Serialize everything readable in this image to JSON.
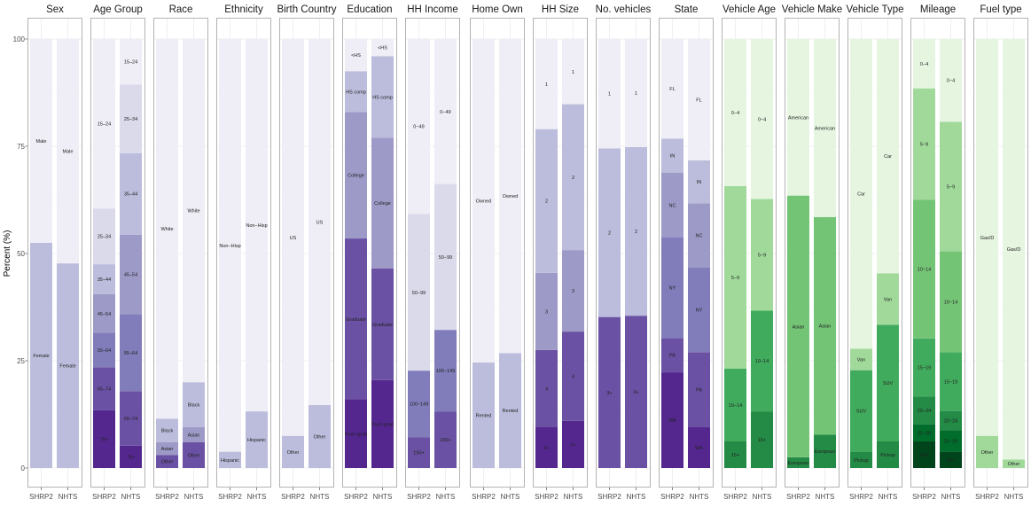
{
  "chart_data": {
    "type": "bar",
    "stacked": true,
    "ylabel": "Percent (%)",
    "xlabel": "",
    "ylim": [
      0,
      100
    ],
    "yticks": [
      0,
      25,
      50,
      75,
      100
    ],
    "categories": [
      "SHRP2",
      "NHTS"
    ],
    "grid": true,
    "palettes": {
      "purple": [
        "#3f007d",
        "#54278f",
        "#6a51a3",
        "#807dba",
        "#9e9ac8",
        "#bcbddc",
        "#dadaeb",
        "#efedf5"
      ],
      "green": [
        "#00441b",
        "#006d2c",
        "#238b45",
        "#41ab5d",
        "#74c476",
        "#a1d99b",
        "#c7e9c0",
        "#e5f5e0"
      ]
    },
    "facets": [
      {
        "title": "Sex",
        "palette": "purple",
        "segments": [
          {
            "label": "Female",
            "values": [
              52.5,
              47.7
            ],
            "color": "#bcbddc"
          },
          {
            "label": "Male",
            "values": [
              47.5,
              52.3
            ],
            "color": "#efedf5"
          }
        ]
      },
      {
        "title": "Age Group",
        "palette": "purple",
        "segments": [
          {
            "label": "75+",
            "values": [
              13.5,
              5.2
            ],
            "color": "#54278f"
          },
          {
            "label": "65–74",
            "values": [
              10.0,
              12.7
            ],
            "color": "#6a51a3"
          },
          {
            "label": "55–64",
            "values": [
              8.0,
              18.0
            ],
            "color": "#807dba"
          },
          {
            "label": "45–54",
            "values": [
              9.0,
              18.5
            ],
            "color": "#9e9ac8"
          },
          {
            "label": "35–44",
            "values": [
              7.0,
              19.0
            ],
            "color": "#bcbddc"
          },
          {
            "label": "25–34",
            "values": [
              13.0,
              16.0
            ],
            "color": "#dadaeb"
          },
          {
            "label": "15–24",
            "values": [
              39.5,
              10.6
            ],
            "color": "#efedf5"
          }
        ]
      },
      {
        "title": "Race",
        "palette": "purple",
        "segments": [
          {
            "label": "Other",
            "values": [
              3.0,
              6.0
            ],
            "color": "#6a51a3"
          },
          {
            "label": "Asian",
            "values": [
              3.0,
              3.5
            ],
            "color": "#9e9ac8"
          },
          {
            "label": "Black",
            "values": [
              5.5,
              10.5
            ],
            "color": "#bcbddc"
          },
          {
            "label": "White",
            "values": [
              88.5,
              80.0
            ],
            "color": "#efedf5"
          }
        ]
      },
      {
        "title": "Ethnicity",
        "palette": "purple",
        "segments": [
          {
            "label": "Hispanic",
            "values": [
              3.8,
              13.2
            ],
            "color": "#bcbddc"
          },
          {
            "label": "Non−Hisp",
            "values": [
              96.2,
              86.8
            ],
            "color": "#efedf5"
          }
        ]
      },
      {
        "title": "Birth Country",
        "palette": "purple",
        "segments": [
          {
            "label": "Other",
            "values": [
              7.5,
              14.7
            ],
            "color": "#bcbddc"
          },
          {
            "label": "US",
            "values": [
              92.5,
              85.3
            ],
            "color": "#efedf5"
          }
        ]
      },
      {
        "title": "Education",
        "palette": "purple",
        "segments": [
          {
            "label": "Post−grad",
            "values": [
              16.0,
              20.5
            ],
            "color": "#54278f"
          },
          {
            "label": "Graduate",
            "values": [
              37.5,
              26.0
            ],
            "color": "#6a51a3"
          },
          {
            "label": "College",
            "values": [
              29.5,
              30.5
            ],
            "color": "#9e9ac8"
          },
          {
            "label": "HS comp",
            "values": [
              9.5,
              19.0
            ],
            "color": "#bcbddc"
          },
          {
            "label": "<HS",
            "values": [
              7.5,
              4.0
            ],
            "color": "#efedf5"
          }
        ]
      },
      {
        "title": "HH Income",
        "palette": "purple",
        "segments": [
          {
            "label": "150+",
            "values": [
              7.2,
              13.2
            ],
            "color": "#6a51a3"
          },
          {
            "label": "100−149",
            "values": [
              15.5,
              19.0
            ],
            "color": "#807dba"
          },
          {
            "label": "50−99",
            "values": [
              36.5,
              34.0
            ],
            "color": "#dadaeb"
          },
          {
            "label": "0−49",
            "values": [
              40.8,
              33.8
            ],
            "color": "#efedf5"
          }
        ]
      },
      {
        "title": "Home Own",
        "palette": "purple",
        "segments": [
          {
            "label": "Rented",
            "values": [
              24.6,
              26.8
            ],
            "color": "#bcbddc"
          },
          {
            "label": "Owned",
            "values": [
              75.4,
              73.2
            ],
            "color": "#efedf5"
          }
        ]
      },
      {
        "title": "HH Size",
        "palette": "purple",
        "segments": [
          {
            "label": "5+",
            "values": [
              9.5,
              11.0
            ],
            "color": "#54278f"
          },
          {
            "label": "4",
            "values": [
              18.0,
              20.8
            ],
            "color": "#6a51a3"
          },
          {
            "label": "3",
            "values": [
              18.0,
              19.0
            ],
            "color": "#9e9ac8"
          },
          {
            "label": "2",
            "values": [
              33.5,
              34.0
            ],
            "color": "#bcbddc"
          },
          {
            "label": "1",
            "values": [
              21.0,
              15.2
            ],
            "color": "#efedf5"
          }
        ]
      },
      {
        "title": "No. vehicles",
        "palette": "purple",
        "segments": [
          {
            "label": "3+",
            "values": [
              35.2,
              35.5
            ],
            "color": "#6a51a3"
          },
          {
            "label": "2",
            "values": [
              39.3,
              39.3
            ],
            "color": "#bcbddc"
          },
          {
            "label": "1",
            "values": [
              25.5,
              25.2
            ],
            "color": "#efedf5"
          }
        ]
      },
      {
        "title": "State",
        "palette": "purple",
        "segments": [
          {
            "label": "WA",
            "values": [
              22.3,
              9.5
            ],
            "color": "#54278f"
          },
          {
            "label": "PA",
            "values": [
              8.0,
              17.5
            ],
            "color": "#6a51a3"
          },
          {
            "label": "NY",
            "values": [
              23.5,
              19.7
            ],
            "color": "#807dba"
          },
          {
            "label": "NC",
            "values": [
              15.0,
              15.0
            ],
            "color": "#9e9ac8"
          },
          {
            "label": "IN",
            "values": [
              8.0,
              10.0
            ],
            "color": "#bcbddc"
          },
          {
            "label": "FL",
            "values": [
              23.2,
              28.3
            ],
            "color": "#efedf5"
          }
        ]
      },
      {
        "title": "Vehicle Age",
        "palette": "green",
        "segments": [
          {
            "label": "15+",
            "values": [
              6.2,
              13.2
            ],
            "color": "#238b45"
          },
          {
            "label": "10−14",
            "values": [
              17.0,
              23.5
            ],
            "color": "#41ab5d"
          },
          {
            "label": "5−9",
            "values": [
              42.5,
              26.0
            ],
            "color": "#a1d99b"
          },
          {
            "label": "0−4",
            "values": [
              34.3,
              37.3
            ],
            "color": "#e5f5e0"
          }
        ]
      },
      {
        "title": "Vehicle Make",
        "palette": "green",
        "segments": [
          {
            "label": "European",
            "values": [
              2.5,
              7.8
            ],
            "color": "#238b45"
          },
          {
            "label": "Asian",
            "values": [
              61.0,
              50.7
            ],
            "color": "#74c476"
          },
          {
            "label": "American",
            "values": [
              36.5,
              41.5
            ],
            "color": "#e5f5e0"
          }
        ]
      },
      {
        "title": "Vehicle Type",
        "palette": "green",
        "segments": [
          {
            "label": "Pickup",
            "values": [
              3.8,
              6.2
            ],
            "color": "#238b45"
          },
          {
            "label": "SUV",
            "values": [
              19.0,
              27.2
            ],
            "color": "#41ab5d"
          },
          {
            "label": "Van",
            "values": [
              5.0,
              12.0
            ],
            "color": "#a1d99b"
          },
          {
            "label": "Car",
            "values": [
              72.2,
              54.6
            ],
            "color": "#e5f5e0"
          }
        ]
      },
      {
        "title": "Mileage",
        "palette": "green",
        "segments": [
          {
            "label": "30+",
            "values": [
              6.2,
              3.8
            ],
            "color": "#00441b"
          },
          {
            "label": "25−29",
            "values": [
              4.0,
              5.0
            ],
            "color": "#006d2c"
          },
          {
            "label": "20−24",
            "values": [
              6.5,
              4.5
            ],
            "color": "#238b45"
          },
          {
            "label": "15−19",
            "values": [
              13.5,
              13.7
            ],
            "color": "#41ab5d"
          },
          {
            "label": "10−14",
            "values": [
              32.3,
              23.5
            ],
            "color": "#74c476"
          },
          {
            "label": "5−9",
            "values": [
              26.0,
              30.2
            ],
            "color": "#a1d99b"
          },
          {
            "label": "0−4",
            "values": [
              11.5,
              19.3
            ],
            "color": "#e5f5e0"
          }
        ]
      },
      {
        "title": "Fuel type",
        "palette": "green",
        "segments": [
          {
            "label": "Other",
            "values": [
              7.5,
              2.0
            ],
            "color": "#a1d99b"
          },
          {
            "label": "Gas/D",
            "values": [
              92.5,
              98.0
            ],
            "color": "#e5f5e0"
          }
        ]
      }
    ]
  }
}
